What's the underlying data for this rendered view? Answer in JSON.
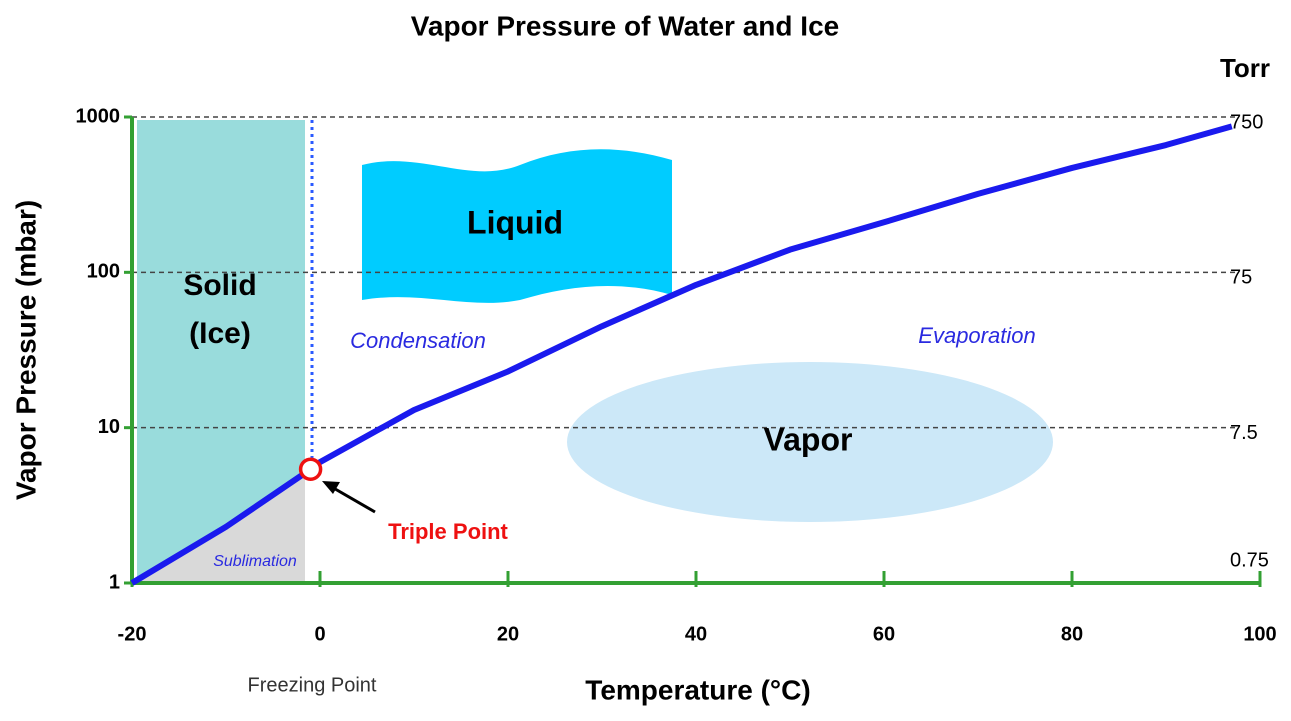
{
  "chart_data": {
    "type": "line",
    "title": "Vapor Pressure of Water and Ice",
    "x_label": "Temperature (°C)",
    "y_label": "Vapor Pressure (mbar)",
    "y2_label": "Torr",
    "x": [
      -20,
      -10,
      -1,
      0,
      10,
      20,
      30,
      40,
      50,
      60,
      70,
      80,
      90,
      97
    ],
    "series": [
      {
        "color": "#1a1aee",
        "values": [
          1,
          2.3,
          5.4,
          6,
          13,
          23,
          45,
          83,
          140,
          210,
          320,
          470,
          660,
          870
        ]
      }
    ],
    "xlim": [
      -20,
      100
    ],
    "xticks": [
      -20,
      0,
      20,
      40,
      60,
      80,
      100
    ],
    "ylim": [
      1,
      1000
    ],
    "yticks": [
      1,
      10,
      100,
      1000
    ],
    "log_y": true,
    "y2lim": [
      0.75,
      750
    ],
    "y2ticks": [
      750,
      75,
      7.5,
      0.75
    ],
    "grid": true,
    "axis_color": "#33a033",
    "regions": {
      "solid": "Solid",
      "ice": "(Ice)",
      "liquid": "Liquid",
      "vapor": "Vapor"
    },
    "processes": {
      "condensation": "Condensation",
      "evaporation": "Evaporation",
      "sublimation": "Sublimation"
    },
    "triple_point": {
      "label": "Triple Point",
      "x": -1,
      "y": 5.4
    },
    "freezing_point": "Freezing Point"
  }
}
